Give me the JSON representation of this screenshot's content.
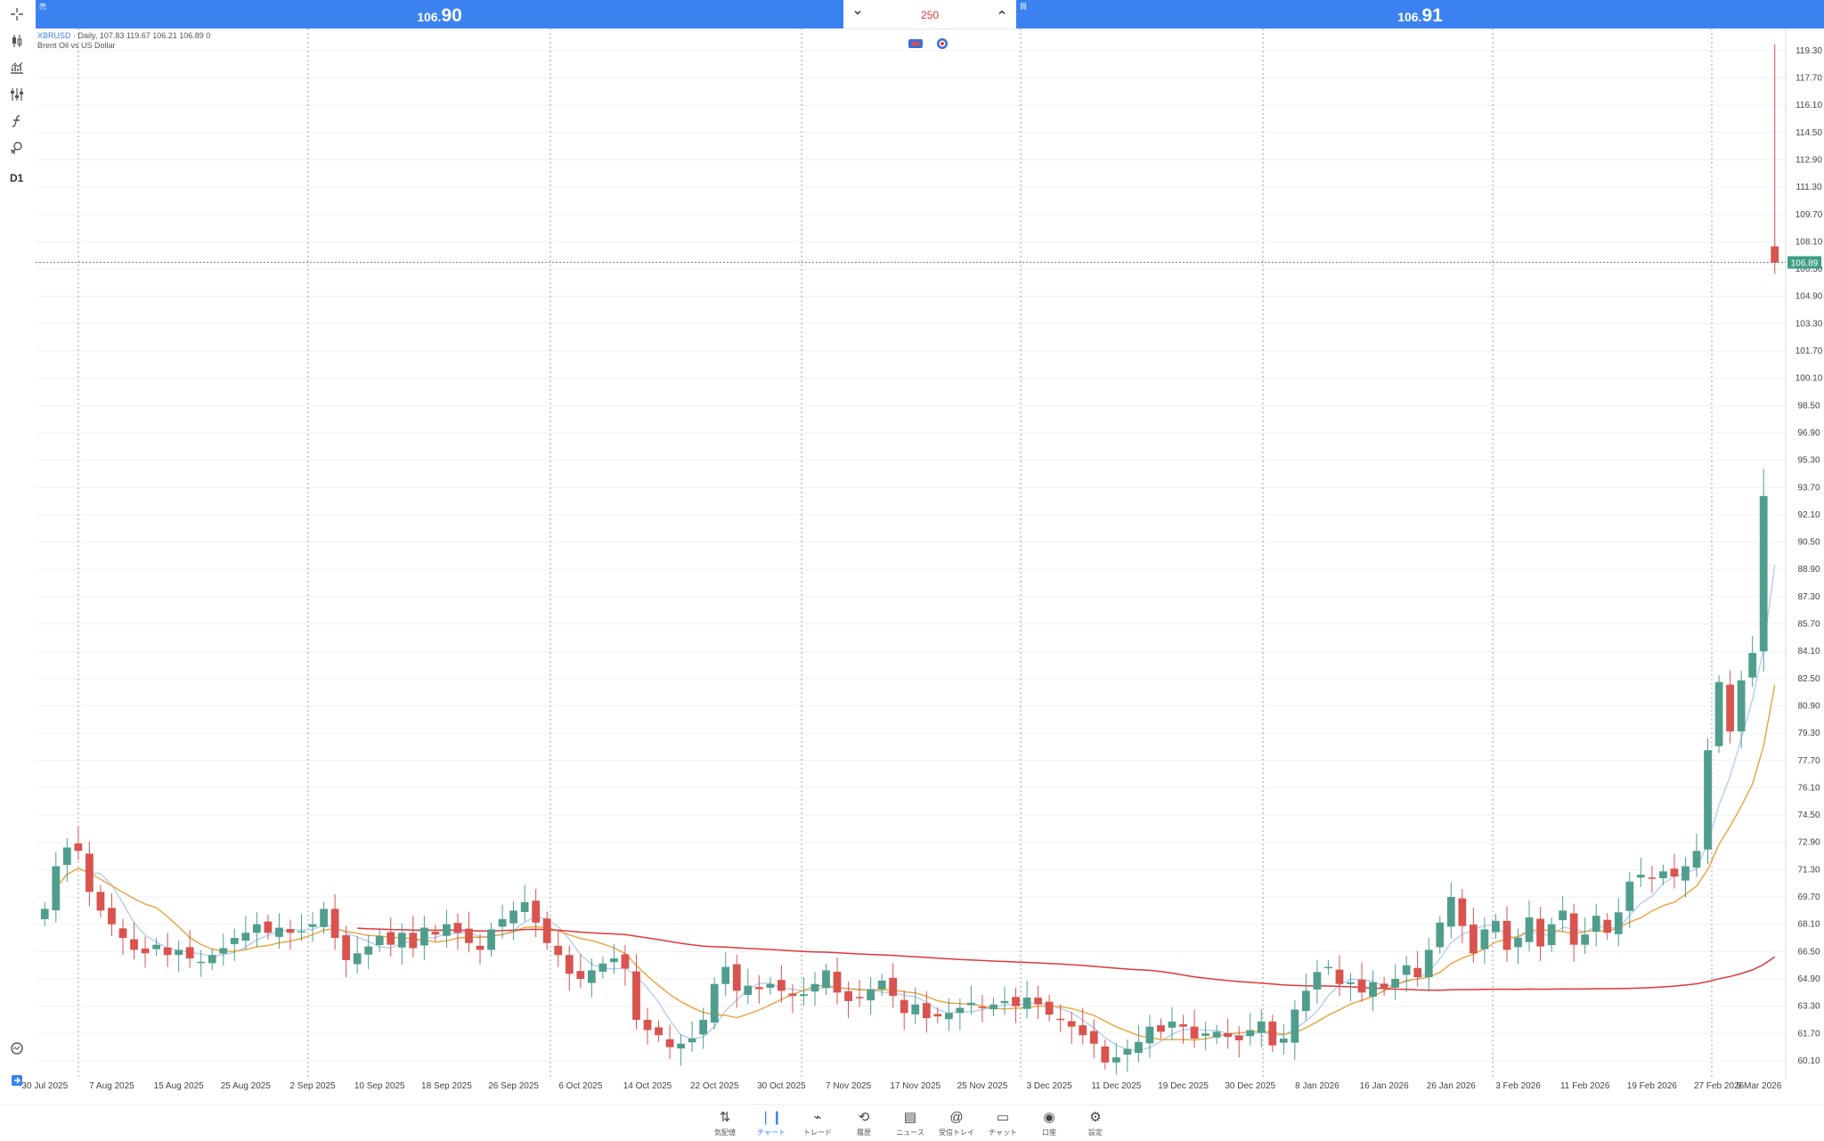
{
  "trade_bar": {
    "sell_caption": "売",
    "sell_price_small": "106.",
    "sell_price_big": "90",
    "buy_caption": "買",
    "buy_price_small": "106.",
    "buy_price_big": "91",
    "volume": "250",
    "volume_down_icon": "chevron-down-icon",
    "volume_up_icon": "chevron-up-icon"
  },
  "symbol": {
    "name": "XBRUSD",
    "details": "Daily, 107.83 119.67 106.21 106.89 0",
    "description": "Brent Oil vs US Dollar"
  },
  "left_tools": [
    "crosshair-icon",
    "candle-type-icon",
    "indicators-icon",
    "settings-sliders-icon",
    "function-icon",
    "objects-icon"
  ],
  "timeframe": "D1",
  "colors": {
    "bull": "#4f9e8d",
    "bear": "#d9534f",
    "ma_slow": "#e0373a",
    "ma_mid": "#e8a33c",
    "ma_fast": "#a9c8ef",
    "price_tag": "#3e9e86",
    "accent": "#3b82f0"
  },
  "chart_data": {
    "type": "candlestick",
    "symbol": "XBRUSD",
    "timeframe": "Daily",
    "last_price": 106.89,
    "price_tag": "106.89",
    "y_labels": [
      "119.30",
      "117.70",
      "116.10",
      "114.50",
      "112.90",
      "111.30",
      "109.70",
      "108.10",
      "106.50",
      "104.90",
      "103.30",
      "101.70",
      "100.10",
      "98.50",
      "96.90",
      "95.30",
      "93.70",
      "92.10",
      "90.50",
      "88.90",
      "87.30",
      "85.70",
      "84.10",
      "82.50",
      "80.90",
      "79.30",
      "77.70",
      "76.10",
      "74.50",
      "72.90",
      "71.30",
      "69.70",
      "68.10",
      "66.50",
      "64.90",
      "63.30",
      "61.70",
      "60.10"
    ],
    "y_range": [
      59.0,
      120.6
    ],
    "x_labels": [
      "30 Jul 2025",
      "7 Aug 2025",
      "15 Aug 2025",
      "25 Aug 2025",
      "2 Sep 2025",
      "10 Sep 2025",
      "18 Sep 2025",
      "26 Sep 2025",
      "6 Oct 2025",
      "14 Oct 2025",
      "22 Oct 2025",
      "30 Oct 2025",
      "7 Nov 2025",
      "17 Nov 2025",
      "25 Nov 2025",
      "3 Dec 2025",
      "11 Dec 2025",
      "19 Dec 2025",
      "30 Dec 2025",
      "8 Jan 2026",
      "16 Jan 2026",
      "26 Jan 2026",
      "3 Feb 2026",
      "11 Feb 2026",
      "19 Feb 2026",
      "27 Feb 2026",
      "9 Mar 2026"
    ],
    "candles_close": [
      69.0,
      71.5,
      72.6,
      72.4,
      70.0,
      68.9,
      68.1,
      67.3,
      66.6,
      66.4,
      66.9,
      66.3,
      66.6,
      66.1,
      65.9,
      66.3,
      66.7,
      67.3,
      67.6,
      68.1,
      67.6,
      67.9,
      67.6,
      67.7,
      68.1,
      69.0,
      67.3,
      66.0,
      66.4,
      66.8,
      67.4,
      66.9,
      67.6,
      66.7,
      67.9,
      67.5,
      68.1,
      67.6,
      67.0,
      66.6,
      67.8,
      68.4,
      68.9,
      69.4,
      68.2,
      67.0,
      66.3,
      65.2,
      64.9,
      65.4,
      65.8,
      66.1,
      65.5,
      62.5,
      61.9,
      61.6,
      60.9,
      61.1,
      61.4,
      62.5,
      64.6,
      65.6,
      64.2,
      64.5,
      64.3,
      64.6,
      64.2,
      63.9,
      64.0,
      64.6,
      65.4,
      64.1,
      63.6,
      63.8,
      64.3,
      64.8,
      63.9,
      62.9,
      63.4,
      62.6,
      62.7,
      62.9,
      63.2,
      63.5,
      63.2,
      63.4,
      63.6,
      63.3,
      63.8,
      63.4,
      62.8,
      62.5,
      62.1,
      61.6,
      61.1,
      60.0,
      60.3,
      60.8,
      61.2,
      62.1,
      61.8,
      62.4,
      62.1,
      61.4,
      61.7,
      61.8,
      61.5,
      61.3,
      61.9,
      62.4,
      61.0,
      61.4,
      63.1,
      64.2,
      65.3,
      65.6,
      64.6,
      64.7,
      64.1,
      64.7,
      64.3,
      64.9,
      65.7,
      65.0,
      66.6,
      68.2,
      69.7,
      68.0,
      66.4,
      67.8,
      68.3,
      66.6,
      67.3,
      68.5,
      66.8,
      68.1,
      68.9,
      66.9,
      67.5,
      68.6,
      67.6,
      68.8,
      70.6,
      71.0,
      70.8,
      71.2,
      70.9,
      71.5,
      72.4,
      78.3,
      82.3,
      79.4,
      82.4,
      84.0,
      93.2,
      106.89
    ]
  },
  "nav": [
    {
      "label": "気配値",
      "icon": "quotes-icon"
    },
    {
      "label": "チャート",
      "icon": "chart-icon"
    },
    {
      "label": "トレード",
      "icon": "trade-icon"
    },
    {
      "label": "履歴",
      "icon": "history-icon"
    },
    {
      "label": "ニュース",
      "icon": "news-icon"
    },
    {
      "label": "受信トレイ",
      "icon": "mailbox-icon"
    },
    {
      "label": "チャット",
      "icon": "chat-icon"
    },
    {
      "label": "口座",
      "icon": "account-icon"
    },
    {
      "label": "設定",
      "icon": "settings-icon"
    }
  ],
  "nav_active": "チャート"
}
